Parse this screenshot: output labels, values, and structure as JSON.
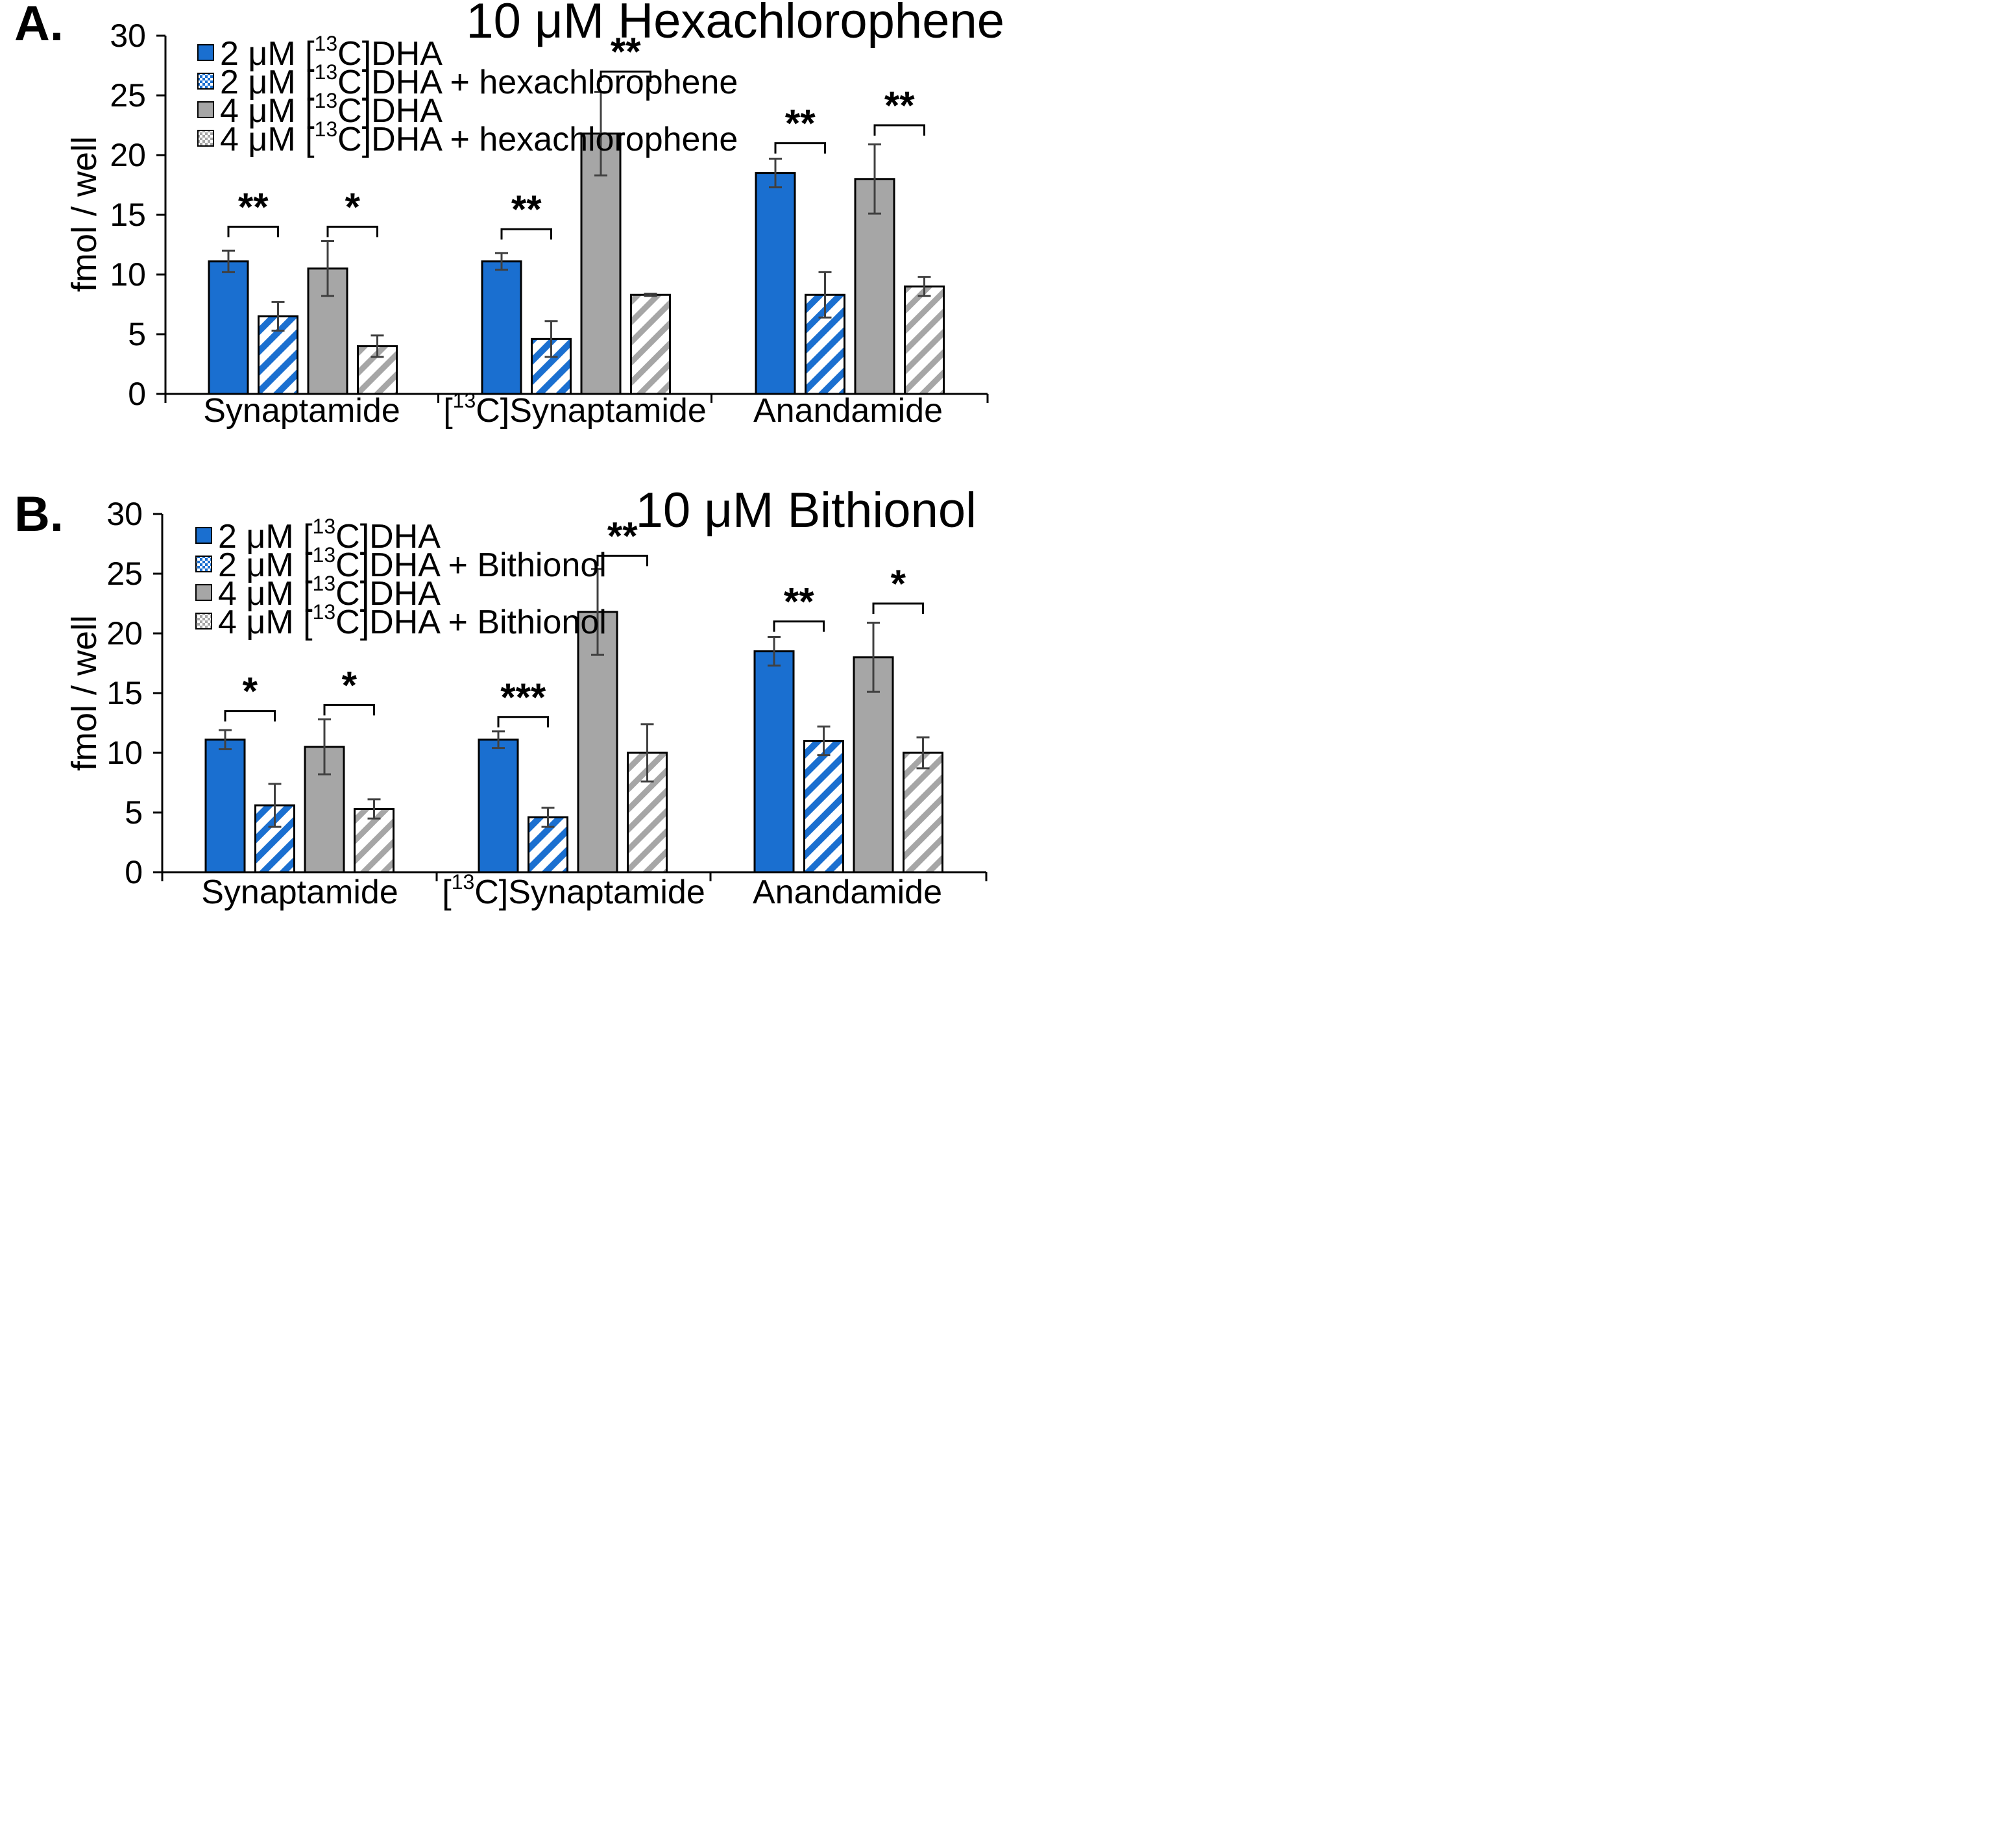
{
  "chart_data": [
    {
      "type": "bar",
      "panel_label": "A.",
      "title": "10 μM Hexachlorophene",
      "ylabel": "fmol / well",
      "xlabel": "",
      "ylim": [
        0,
        30
      ],
      "yticks": [
        "0",
        "5",
        "10",
        "15",
        "20",
        "25",
        "30"
      ],
      "categories": [
        {
          "pre": "",
          "sup": "",
          "post": "Synaptamide"
        },
        {
          "pre": "[",
          "sup": "13",
          "post": "C]Synaptamide"
        },
        {
          "pre": "",
          "sup": "",
          "post": "Anandamide"
        }
      ],
      "series": [
        {
          "legend": {
            "pre": "2 μM [",
            "sup": "13",
            "post": "C]DHA"
          },
          "color": "#1a6fd0",
          "pattern": "solid",
          "values": [
            11.1,
            11.1,
            18.5
          ],
          "errors": [
            0.9,
            0.7,
            1.2
          ]
        },
        {
          "legend": {
            "pre": "2 μM [",
            "sup": "13",
            "post": "C]DHA + hexachlorophene"
          },
          "color": "#1a6fd0",
          "pattern": "hatch",
          "values": [
            6.5,
            4.6,
            8.3
          ],
          "errors": [
            1.2,
            1.5,
            1.9
          ]
        },
        {
          "legend": {
            "pre": "4 μM [",
            "sup": "13",
            "post": "C]DHA"
          },
          "color": "#a6a6a6",
          "pattern": "solid",
          "values": [
            10.5,
            21.8,
            18.0
          ],
          "errors": [
            2.3,
            3.5,
            2.9
          ]
        },
        {
          "legend": {
            "pre": "4 μM [",
            "sup": "13",
            "post": "C]DHA + hexachlorophene"
          },
          "color": "#a6a6a6",
          "pattern": "hatch",
          "values": [
            4.0,
            8.3,
            9.0
          ],
          "errors": [
            0.9,
            0.1,
            0.8
          ]
        }
      ],
      "significance": [
        {
          "category": 0,
          "from": 0,
          "to": 1,
          "label": "**",
          "y": 14.0
        },
        {
          "category": 0,
          "from": 2,
          "to": 3,
          "label": "*",
          "y": 14.0
        },
        {
          "category": 1,
          "from": 0,
          "to": 1,
          "label": "**",
          "y": 13.8
        },
        {
          "category": 1,
          "from": 2,
          "to": 3,
          "label": "**",
          "y": 27.0
        },
        {
          "category": 2,
          "from": 0,
          "to": 1,
          "label": "**",
          "y": 21.0
        },
        {
          "category": 2,
          "from": 2,
          "to": 3,
          "label": "**",
          "y": 22.5
        }
      ]
    },
    {
      "type": "bar",
      "panel_label": "B.",
      "title": "10 μM Bithionol",
      "ylabel": "fmol / well",
      "xlabel": "",
      "ylim": [
        0,
        30
      ],
      "yticks": [
        "0",
        "5",
        "10",
        "15",
        "20",
        "25",
        "30"
      ],
      "categories": [
        {
          "pre": "",
          "sup": "",
          "post": "Synaptamide"
        },
        {
          "pre": "[",
          "sup": "13",
          "post": "C]Synaptamide"
        },
        {
          "pre": "",
          "sup": "",
          "post": "Anandamide"
        }
      ],
      "series": [
        {
          "legend": {
            "pre": "2 μM [",
            "sup": "13",
            "post": "C]DHA"
          },
          "color": "#1a6fd0",
          "pattern": "solid",
          "values": [
            11.1,
            11.1,
            18.5
          ],
          "errors": [
            0.8,
            0.7,
            1.2
          ]
        },
        {
          "legend": {
            "pre": "2 μM [",
            "sup": "13",
            "post": "C]DHA + Bithionol"
          },
          "color": "#1a6fd0",
          "pattern": "hatch",
          "values": [
            5.6,
            4.6,
            11.0
          ],
          "errors": [
            1.8,
            0.8,
            1.2
          ]
        },
        {
          "legend": {
            "pre": "4 μM [",
            "sup": "13",
            "post": "C]DHA"
          },
          "color": "#a6a6a6",
          "pattern": "solid",
          "values": [
            10.5,
            21.8,
            18.0
          ],
          "errors": [
            2.3,
            3.6,
            2.9
          ]
        },
        {
          "legend": {
            "pre": "4 μM [",
            "sup": "13",
            "post": "C]DHA + Bithionol"
          },
          "color": "#a6a6a6",
          "pattern": "hatch",
          "values": [
            5.3,
            10.0,
            10.0
          ],
          "errors": [
            0.8,
            2.4,
            1.3
          ]
        }
      ],
      "significance": [
        {
          "category": 0,
          "from": 0,
          "to": 1,
          "label": "*",
          "y": 13.5
        },
        {
          "category": 0,
          "from": 2,
          "to": 3,
          "label": "*",
          "y": 14.0
        },
        {
          "category": 1,
          "from": 0,
          "to": 1,
          "label": "***",
          "y": 13.0
        },
        {
          "category": 1,
          "from": 2,
          "to": 3,
          "label": "**",
          "y": 26.5
        },
        {
          "category": 2,
          "from": 0,
          "to": 1,
          "label": "**",
          "y": 21.0
        },
        {
          "category": 2,
          "from": 2,
          "to": 3,
          "label": "*",
          "y": 22.5
        }
      ]
    }
  ]
}
